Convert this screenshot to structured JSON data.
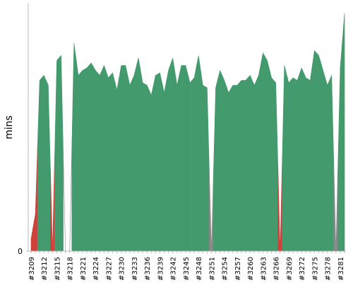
{
  "chart_data": {
    "type": "area",
    "y_label": "mins",
    "categories": [
      "#3209",
      null,
      null,
      "#3212",
      null,
      null,
      "#3215",
      null,
      null,
      "#3218",
      null,
      null,
      "#3221",
      null,
      null,
      "#3224",
      null,
      null,
      "#3227",
      null,
      null,
      "#3230",
      null,
      null,
      "#3233",
      null,
      null,
      "#3236",
      null,
      null,
      "#3239",
      null,
      null,
      "#3242",
      null,
      null,
      "#3245",
      null,
      null,
      "#3248",
      null,
      null,
      "#3251",
      null,
      null,
      "#3254",
      null,
      null,
      "#3257",
      null,
      null,
      "#3260",
      null,
      null,
      "#3263",
      null,
      null,
      "#3266",
      null,
      null,
      "#3269",
      null,
      null,
      "#3272",
      null,
      null,
      "#3275",
      null,
      null,
      "#3278",
      null,
      null,
      "#3281",
      null
    ],
    "values": [
      5,
      15,
      69,
      71,
      67,
      0,
      77,
      79,
      0,
      0,
      84,
      71,
      73,
      74,
      76,
      73,
      71,
      75,
      70,
      72,
      65,
      75,
      75,
      67,
      71,
      78,
      68,
      67,
      63,
      71,
      72,
      64,
      73,
      78,
      67,
      75,
      75,
      68,
      70,
      79,
      67,
      66,
      0,
      66,
      73,
      69,
      64,
      67,
      67,
      69,
      69,
      71,
      67,
      71,
      80,
      77,
      70,
      68,
      0,
      75,
      68,
      70,
      69,
      74,
      70,
      69,
      81,
      79,
      73,
      67,
      71,
      0,
      74,
      96
    ],
    "colors": [
      "#d0413b",
      "#d0413b",
      "#439a6d",
      "#439a6d",
      "#439a6d",
      "#d0413b",
      "#439a6d",
      "#439a6d",
      "#ffffff",
      "#ffffff",
      "#439a6d",
      "#439a6d",
      "#439a6d",
      "#439a6d",
      "#439a6d",
      "#439a6d",
      "#439a6d",
      "#439a6d",
      "#439a6d",
      "#439a6d",
      "#439a6d",
      "#439a6d",
      "#439a6d",
      "#439a6d",
      "#439a6d",
      "#439a6d",
      "#439a6d",
      "#439a6d",
      "#439a6d",
      "#439a6d",
      "#439a6d",
      "#439a6d",
      "#439a6d",
      "#439a6d",
      "#439a6d",
      "#439a6d",
      "#439a6d",
      "#439a6d",
      "#439a6d",
      "#439a6d",
      "#439a6d",
      "#439a6d",
      "#888888",
      "#439a6d",
      "#439a6d",
      "#439a6d",
      "#439a6d",
      "#439a6d",
      "#439a6d",
      "#439a6d",
      "#439a6d",
      "#439a6d",
      "#439a6d",
      "#439a6d",
      "#439a6d",
      "#439a6d",
      "#439a6d",
      "#439a6d",
      "#d0413b",
      "#439a6d",
      "#439a6d",
      "#439a6d",
      "#439a6d",
      "#439a6d",
      "#439a6d",
      "#439a6d",
      "#439a6d",
      "#439a6d",
      "#439a6d",
      "#439a6d",
      "#439a6d",
      "#888888",
      "#439a6d",
      "#439a6d"
    ],
    "ylim": [
      0,
      100
    ],
    "yticks": [
      0
    ]
  }
}
